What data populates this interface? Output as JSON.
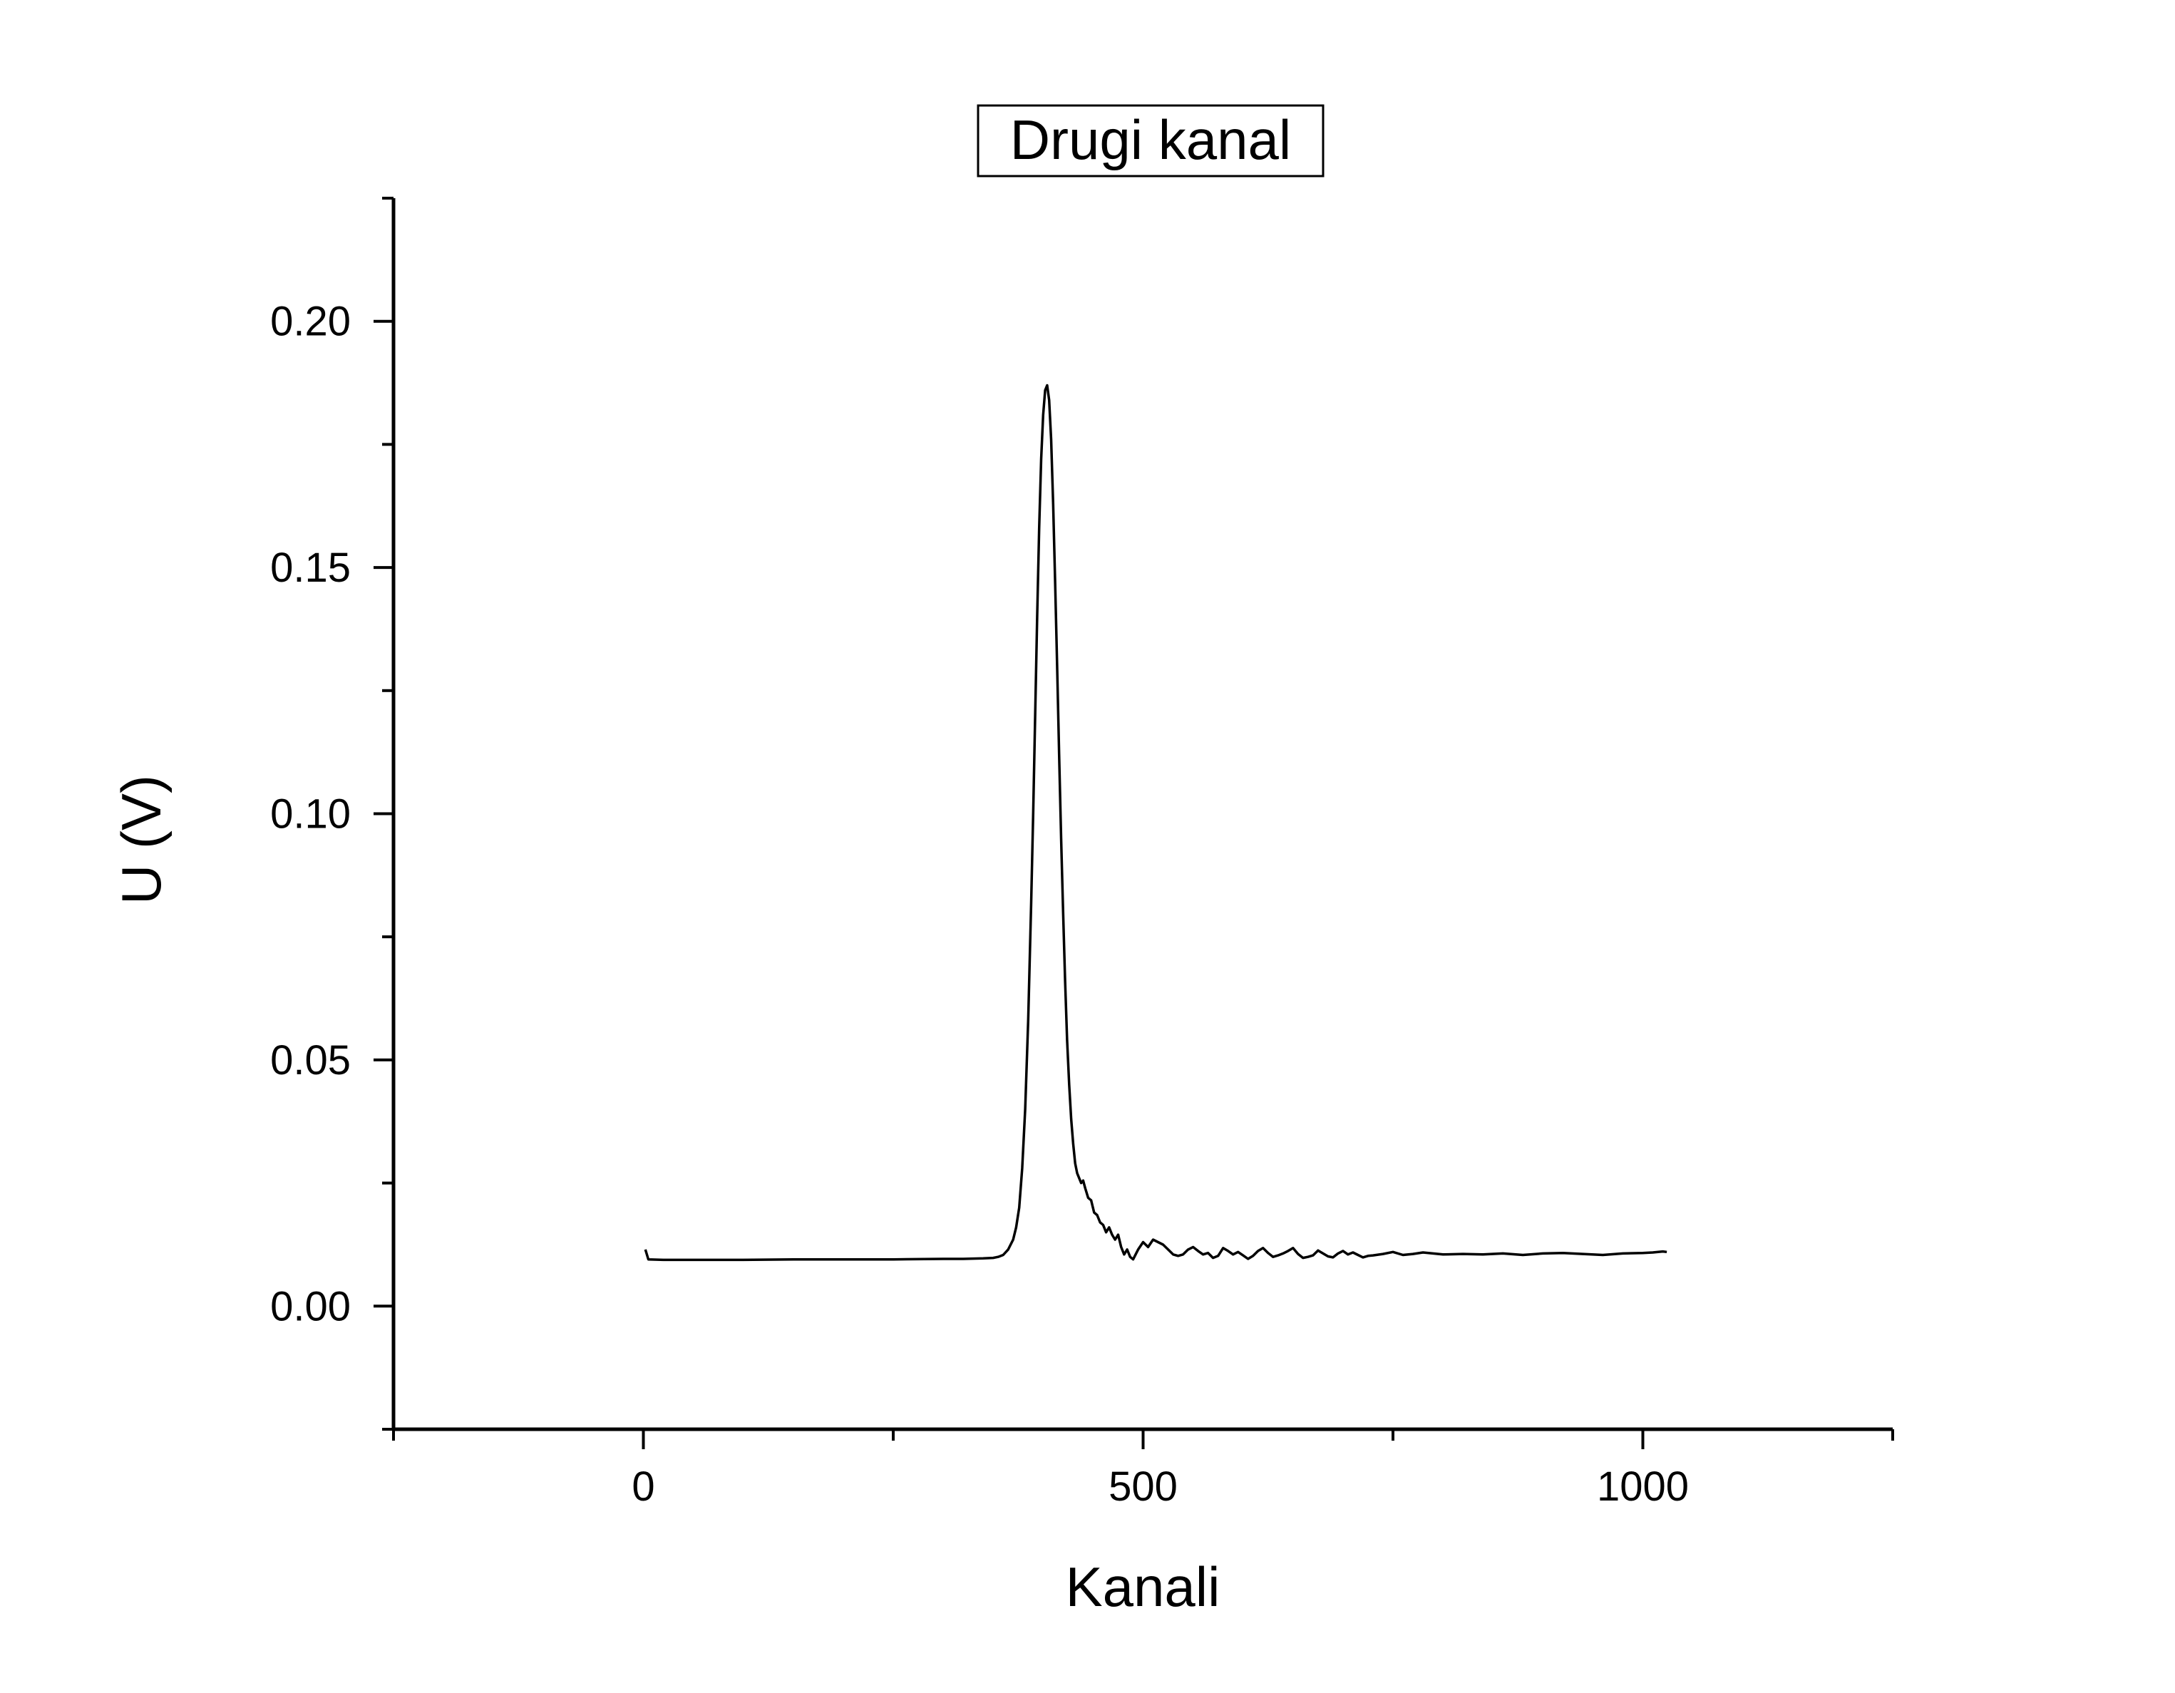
{
  "chart_data": {
    "type": "line",
    "title": "Drugi kanal",
    "xlabel": "Kanali",
    "ylabel": "U (V)",
    "xlim": [
      -250,
      1250
    ],
    "ylim": [
      -0.025,
      0.225
    ],
    "x_ticks": [
      0,
      500,
      1000
    ],
    "x_tick_labels": [
      "0",
      "500",
      "1000"
    ],
    "y_ticks": [
      0.0,
      0.05,
      0.1,
      0.15,
      0.2
    ],
    "y_tick_labels": [
      "0.00",
      "0.05",
      "0.10",
      "0.15",
      "0.20"
    ],
    "grid": false,
    "legend": "none",
    "colors": {
      "line": "#000000",
      "axes": "#000000",
      "background": "#ffffff"
    },
    "series": [
      {
        "x": [
          2,
          5,
          20,
          60,
          100,
          150,
          200,
          250,
          300,
          320,
          340,
          350,
          355,
          360,
          365,
          370,
          373,
          376,
          379,
          382,
          385,
          388,
          390,
          392,
          394,
          396,
          398,
          400,
          402,
          404,
          406,
          408,
          410,
          412,
          414,
          416,
          418,
          420,
          422,
          424,
          426,
          428,
          430,
          432,
          434,
          436,
          438,
          440,
          442,
          445,
          448,
          451,
          454,
          457,
          460,
          463,
          466,
          469,
          472,
          475,
          478,
          481,
          484,
          487,
          490,
          495,
          500,
          505,
          510,
          515,
          520,
          525,
          530,
          535,
          540,
          545,
          550,
          555,
          560,
          565,
          570,
          575,
          580,
          585,
          590,
          595,
          600,
          605,
          610,
          615,
          620,
          625,
          630,
          635,
          640,
          645,
          650,
          655,
          660,
          665,
          670,
          675,
          680,
          685,
          690,
          695,
          700,
          705,
          710,
          715,
          720,
          725,
          730,
          740,
          750,
          760,
          770,
          780,
          790,
          800,
          820,
          840,
          860,
          880,
          900,
          920,
          940,
          960,
          980,
          1000,
          1010,
          1020,
          1024
        ],
        "y": [
          0.0115,
          0.0095,
          0.0094,
          0.0094,
          0.0094,
          0.0095,
          0.0095,
          0.0095,
          0.0096,
          0.0096,
          0.0097,
          0.0098,
          0.01,
          0.0104,
          0.0115,
          0.0135,
          0.016,
          0.02,
          0.028,
          0.04,
          0.058,
          0.082,
          0.1,
          0.12,
          0.14,
          0.158,
          0.172,
          0.181,
          0.186,
          0.187,
          0.184,
          0.176,
          0.163,
          0.147,
          0.13,
          0.112,
          0.095,
          0.08,
          0.066,
          0.054,
          0.045,
          0.038,
          0.033,
          0.029,
          0.027,
          0.026,
          0.025,
          0.0255,
          0.024,
          0.022,
          0.0215,
          0.019,
          0.0185,
          0.017,
          0.0165,
          0.015,
          0.016,
          0.0145,
          0.0135,
          0.0145,
          0.012,
          0.0105,
          0.0115,
          0.01,
          0.0095,
          0.0115,
          0.013,
          0.012,
          0.0135,
          0.013,
          0.0125,
          0.0115,
          0.0105,
          0.0102,
          0.0105,
          0.0115,
          0.012,
          0.0112,
          0.0105,
          0.0108,
          0.0098,
          0.0102,
          0.0118,
          0.0112,
          0.0105,
          0.011,
          0.0103,
          0.0096,
          0.0102,
          0.0112,
          0.0118,
          0.0108,
          0.01,
          0.0103,
          0.0107,
          0.0112,
          0.0118,
          0.0106,
          0.0098,
          0.01,
          0.0103,
          0.0113,
          0.0107,
          0.0101,
          0.0099,
          0.0107,
          0.0112,
          0.0105,
          0.0109,
          0.0104,
          0.0099,
          0.0102,
          0.0103,
          0.0106,
          0.011,
          0.0104,
          0.0106,
          0.0109,
          0.0107,
          0.0105,
          0.0106,
          0.0105,
          0.0107,
          0.0104,
          0.0107,
          0.0108,
          0.0106,
          0.0104,
          0.0107,
          0.0108,
          0.0109,
          0.0111,
          0.011
        ]
      }
    ]
  }
}
